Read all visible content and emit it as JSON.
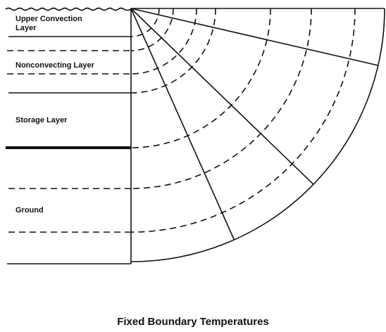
{
  "labels": {
    "upper_convection": [
      "Upper Convection",
      "Layer"
    ],
    "nonconvecting": "Nonconvecting  Layer",
    "storage": "Storage Layer",
    "ground": "Ground"
  },
  "caption": "Fixed Boundary Temperatures"
}
